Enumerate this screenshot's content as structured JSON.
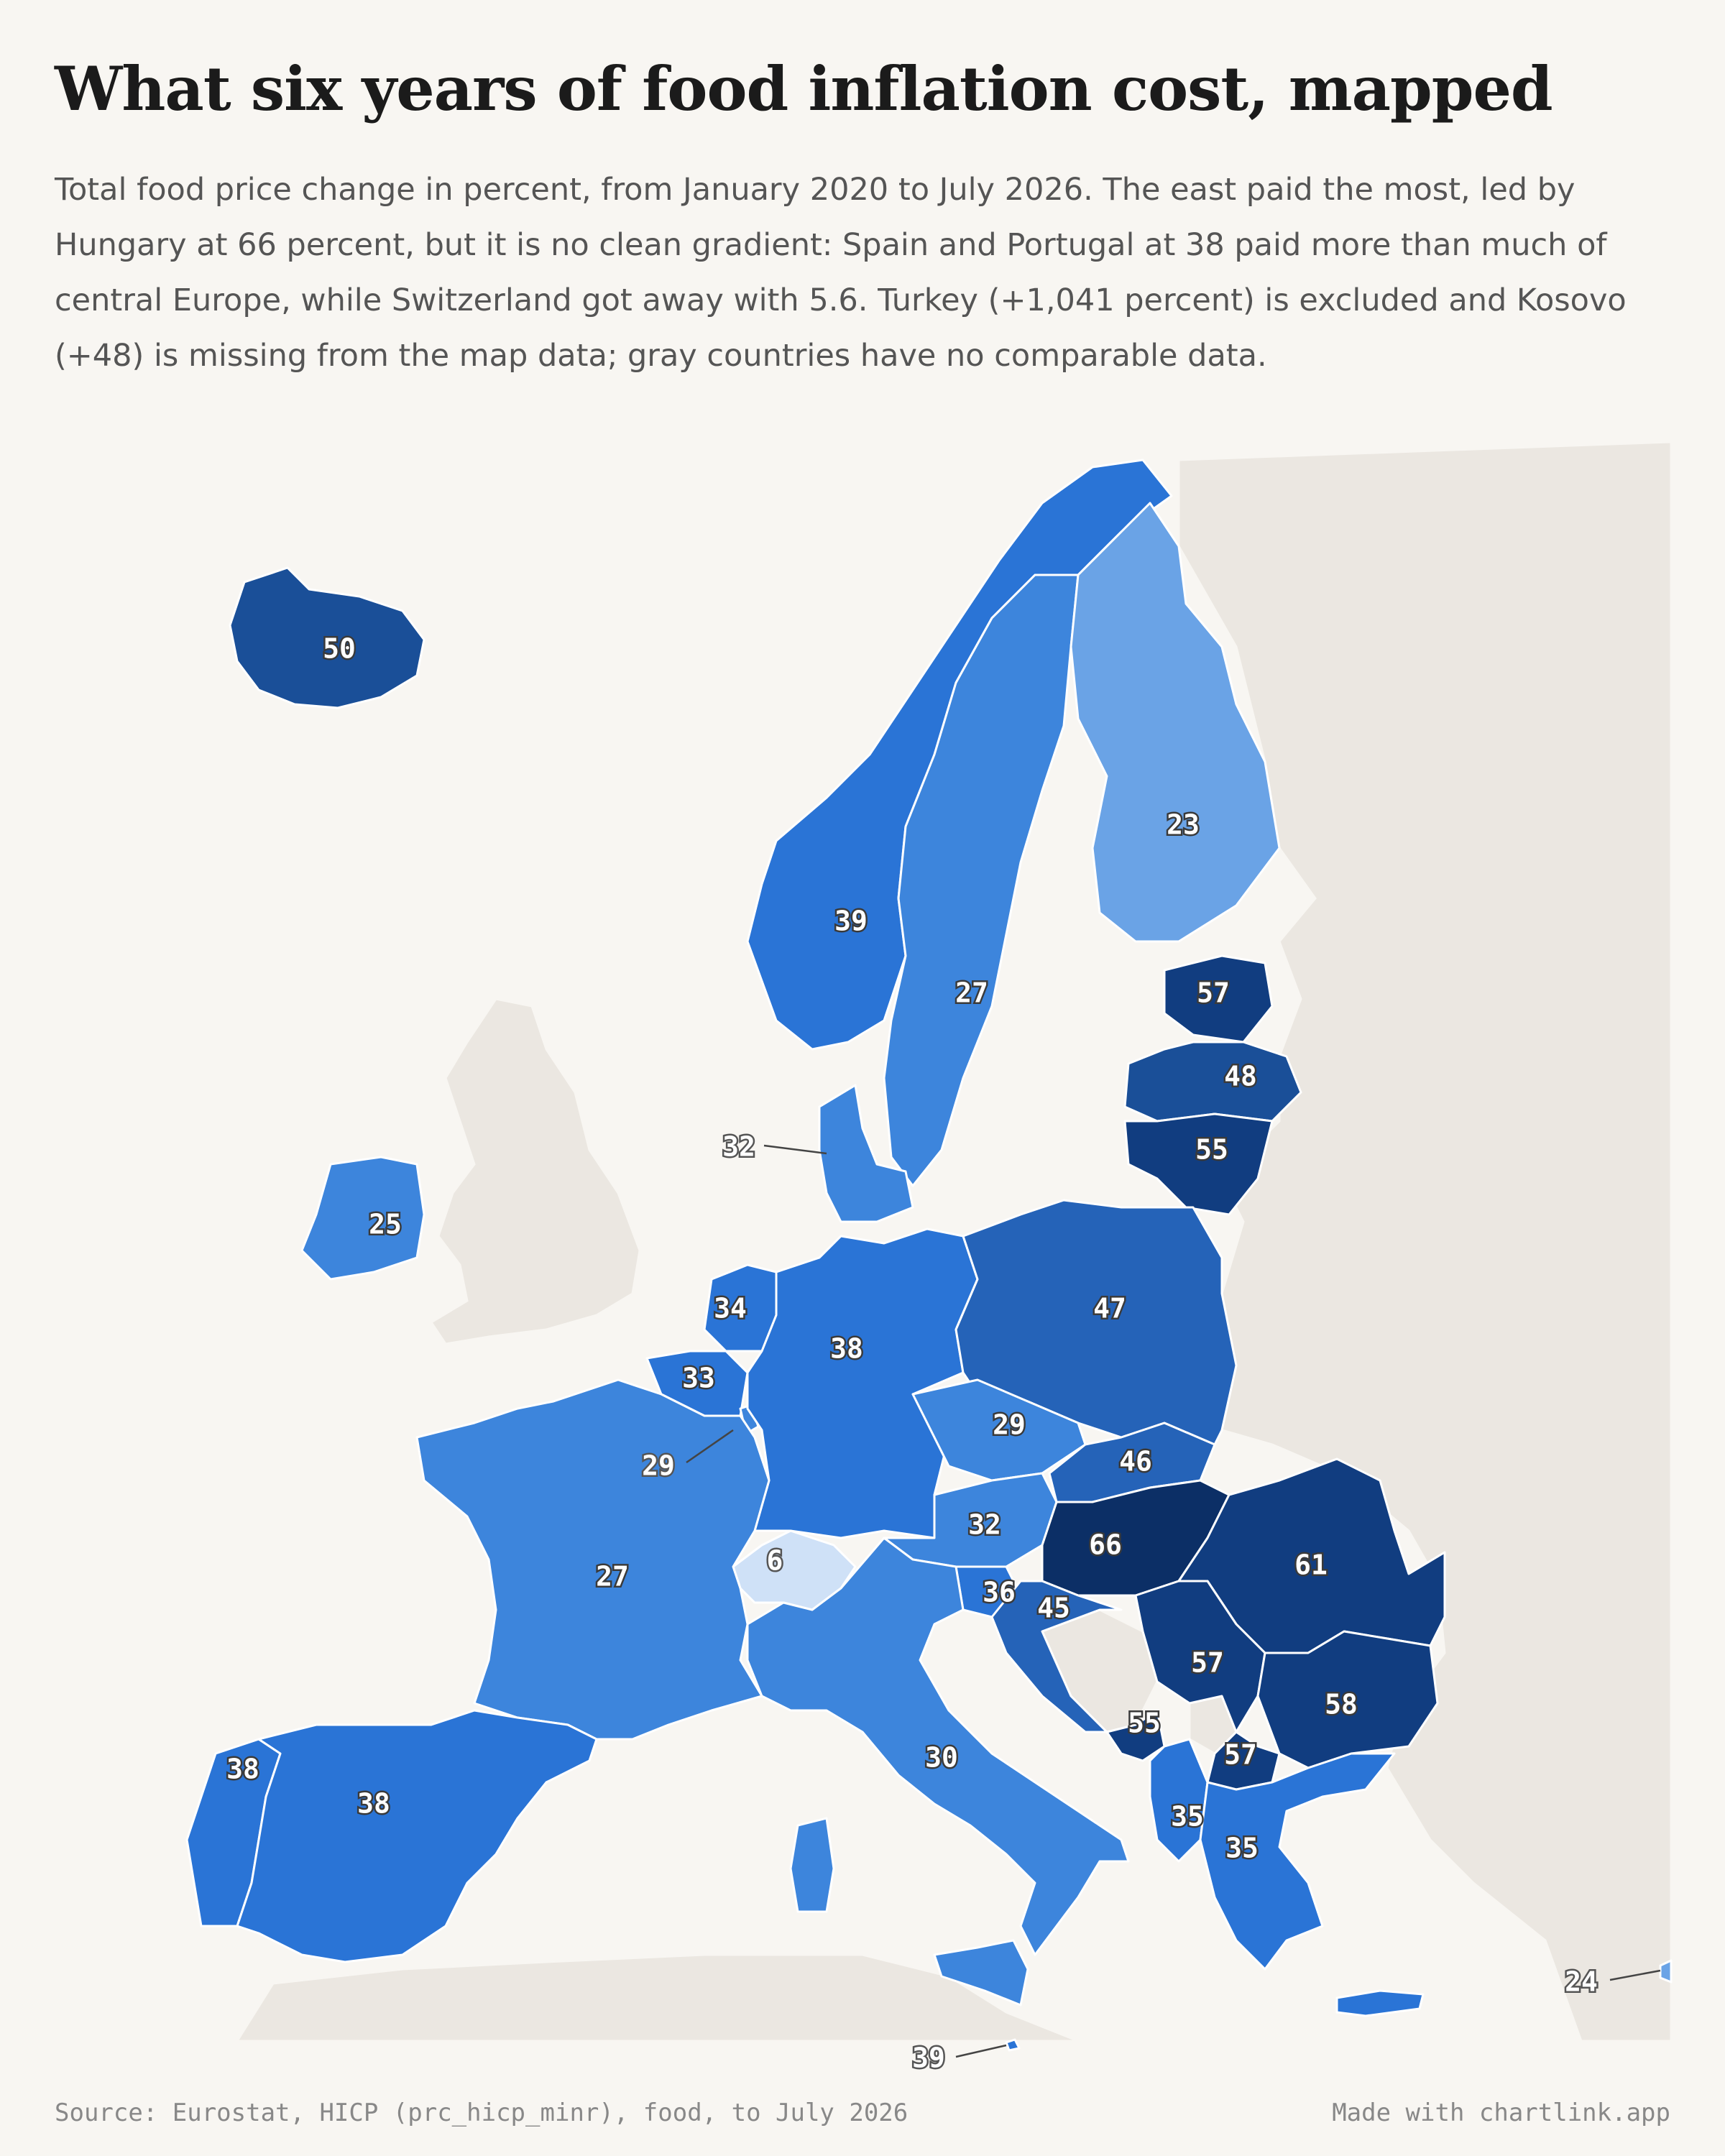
{
  "title": "What six years of food inflation cost, mapped",
  "subtitle": "Total food price change in percent, from January 2020 to July 2026. The east paid the most, led by Hungary at 66 percent, but it is no clean gradient: Spain and Portugal at 38 paid more than much of central Europe, while Switzerland got away with 5.6. Turkey (+1,041 percent) is excluded and Kosovo (+48) is missing from the map data; gray countries have no comparable data.",
  "source": "Source: Eurostat, HICP (prc_hicp_minr), food, to July 2026",
  "credit": "Made with chartlink.app",
  "color_scale": [
    "#cfe1f7",
    "#7db0ec",
    "#6aa3e6",
    "#3d85dc",
    "#2a74d6",
    "#2563b8",
    "#1a4f98",
    "#113d80",
    "#0c2f66"
  ],
  "no_data_color": "#ebe7e1",
  "chart_data": {
    "type": "choropleth",
    "unit": "percent",
    "countries": [
      {
        "name": "Iceland",
        "value": 50,
        "label": "50"
      },
      {
        "name": "Norway",
        "value": 39,
        "label": "39"
      },
      {
        "name": "Sweden",
        "value": 27,
        "label": "27"
      },
      {
        "name": "Finland",
        "value": 23,
        "label": "23"
      },
      {
        "name": "Estonia",
        "value": 57,
        "label": "57"
      },
      {
        "name": "Latvia",
        "value": 48,
        "label": "48"
      },
      {
        "name": "Lithuania",
        "value": 55,
        "label": "55"
      },
      {
        "name": "Denmark",
        "value": 32,
        "label": "32"
      },
      {
        "name": "Ireland",
        "value": 25,
        "label": "25"
      },
      {
        "name": "Netherlands",
        "value": 34,
        "label": "34"
      },
      {
        "name": "Belgium",
        "value": 33,
        "label": "33"
      },
      {
        "name": "Luxembourg",
        "value": 29,
        "label": "29"
      },
      {
        "name": "Germany",
        "value": 38,
        "label": "38"
      },
      {
        "name": "Poland",
        "value": 47,
        "label": "47"
      },
      {
        "name": "Czechia",
        "value": 29,
        "label": "29"
      },
      {
        "name": "Slovakia",
        "value": 46,
        "label": "46"
      },
      {
        "name": "Austria",
        "value": 32,
        "label": "32"
      },
      {
        "name": "Hungary",
        "value": 66,
        "label": "66"
      },
      {
        "name": "Romania",
        "value": 61,
        "label": "61"
      },
      {
        "name": "Switzerland",
        "value": 5.6,
        "label": "6"
      },
      {
        "name": "France",
        "value": 27,
        "label": "27"
      },
      {
        "name": "Slovenia",
        "value": 36,
        "label": "36"
      },
      {
        "name": "Croatia",
        "value": 45,
        "label": "45"
      },
      {
        "name": "Serbia",
        "value": 57,
        "label": "57"
      },
      {
        "name": "Bulgaria",
        "value": 58,
        "label": "58"
      },
      {
        "name": "Montenegro",
        "value": 55,
        "label": "55"
      },
      {
        "name": "North Macedonia",
        "value": 57,
        "label": "57"
      },
      {
        "name": "Albania",
        "value": 35,
        "label": "35"
      },
      {
        "name": "Greece",
        "value": 35,
        "label": "35"
      },
      {
        "name": "Italy",
        "value": 30,
        "label": "30"
      },
      {
        "name": "Portugal",
        "value": 38,
        "label": "38"
      },
      {
        "name": "Spain",
        "value": 38,
        "label": "38"
      },
      {
        "name": "Malta",
        "value": 39,
        "label": "39"
      },
      {
        "name": "Cyprus",
        "value": 24,
        "label": "24"
      }
    ],
    "no_data": [
      "United Kingdom",
      "Bosnia and Herzegovina",
      "Kosovo",
      "Belarus",
      "Ukraine",
      "Russia",
      "Moldova",
      "Turkey"
    ]
  }
}
